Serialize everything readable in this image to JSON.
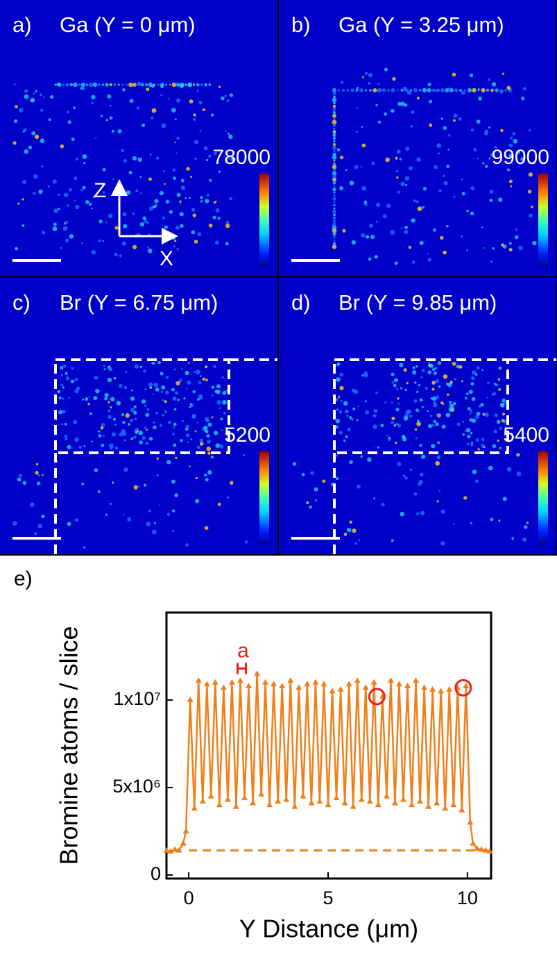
{
  "panels": [
    {
      "letter": "a)",
      "title": "Ga (Y = 0 μm)",
      "colorbar_max": "78000"
    },
    {
      "letter": "b)",
      "title": "Ga (Y = 3.25 μm)",
      "colorbar_max": "99000"
    },
    {
      "letter": "c)",
      "title": "Br (Y = 6.75 μm)",
      "colorbar_max": "5200"
    },
    {
      "letter": "d)",
      "title": "Br (Y = 9.85 μm)",
      "colorbar_max": "5400"
    }
  ],
  "axis_labels": {
    "z": "Z",
    "x": "X"
  },
  "chart_data": {
    "type": "line",
    "panel_label": "e)",
    "xlabel": "Y Distance (μm)",
    "ylabel": "Bromine atoms / slice",
    "xlim": [
      -0.8,
      10.85
    ],
    "ylim": [
      -200000,
      15000000
    ],
    "xticks": [
      0,
      5,
      10
    ],
    "yticks": [
      0,
      {
        "value": 5000000,
        "label": "5x10⁶"
      },
      {
        "value": 10000000,
        "label": "1x10⁷"
      }
    ],
    "series": [
      {
        "color": "#f07f1a",
        "x": [
          -0.8,
          -0.65,
          -0.5,
          -0.35,
          -0.2,
          -0.1,
          0.05,
          0.2,
          0.35,
          0.5,
          0.65,
          0.8,
          0.95,
          1.1,
          1.25,
          1.4,
          1.55,
          1.7,
          1.85,
          2,
          2.15,
          2.3,
          2.45,
          2.6,
          2.75,
          2.9,
          3.05,
          3.2,
          3.35,
          3.5,
          3.65,
          3.8,
          3.95,
          4.1,
          4.25,
          4.4,
          4.55,
          4.7,
          4.85,
          5,
          5.15,
          5.3,
          5.45,
          5.6,
          5.75,
          5.9,
          6.05,
          6.2,
          6.35,
          6.5,
          6.65,
          6.8,
          6.95,
          7.1,
          7.25,
          7.4,
          7.55,
          7.7,
          7.85,
          8,
          8.15,
          8.3,
          8.45,
          8.6,
          8.75,
          8.9,
          9.05,
          9.2,
          9.35,
          9.5,
          9.65,
          9.8,
          9.95,
          10.1,
          10.2,
          10.35,
          10.5,
          10.65,
          10.8
        ],
        "values": [
          1400000,
          1350000,
          1450000,
          1400000,
          1800000,
          2500000,
          10000000,
          3800000,
          11100000,
          4200000,
          10900000,
          4500000,
          11000000,
          4000000,
          10700000,
          4300000,
          11000000,
          3900000,
          11100000,
          4400000,
          10800000,
          4100000,
          11500000,
          4600000,
          11000000,
          4000000,
          10900000,
          4200000,
          10800000,
          4300000,
          11100000,
          3900000,
          10700000,
          4500000,
          10900000,
          4100000,
          11000000,
          4200000,
          10900000,
          4000000,
          10500000,
          4400000,
          10600000,
          4100000,
          10900000,
          3900000,
          11100000,
          4300000,
          10700000,
          4200000,
          11000000,
          4000000,
          10200000,
          4500000,
          11100000,
          4100000,
          10900000,
          4300000,
          10800000,
          4000000,
          11100000,
          4200000,
          10700000,
          3900000,
          10600000,
          4100000,
          10500000,
          3800000,
          10600000,
          4000000,
          10700000,
          3700000,
          10800000,
          3000000,
          1800000,
          1500000,
          1450000,
          1400000,
          1350000
        ]
      }
    ],
    "baseline": {
      "value": 1400000,
      "color": "#f07f1a"
    },
    "highlights": [
      {
        "x": 6.75,
        "y": 10200000,
        "color": "#e8201a"
      },
      {
        "x": 9.85,
        "y": 10700000,
        "color": "#e8201a"
      }
    ],
    "annotations": [
      {
        "text": "a",
        "x": [
          1.75,
          2.05
        ],
        "y": 11800000,
        "color": "#e8201a"
      }
    ]
  }
}
